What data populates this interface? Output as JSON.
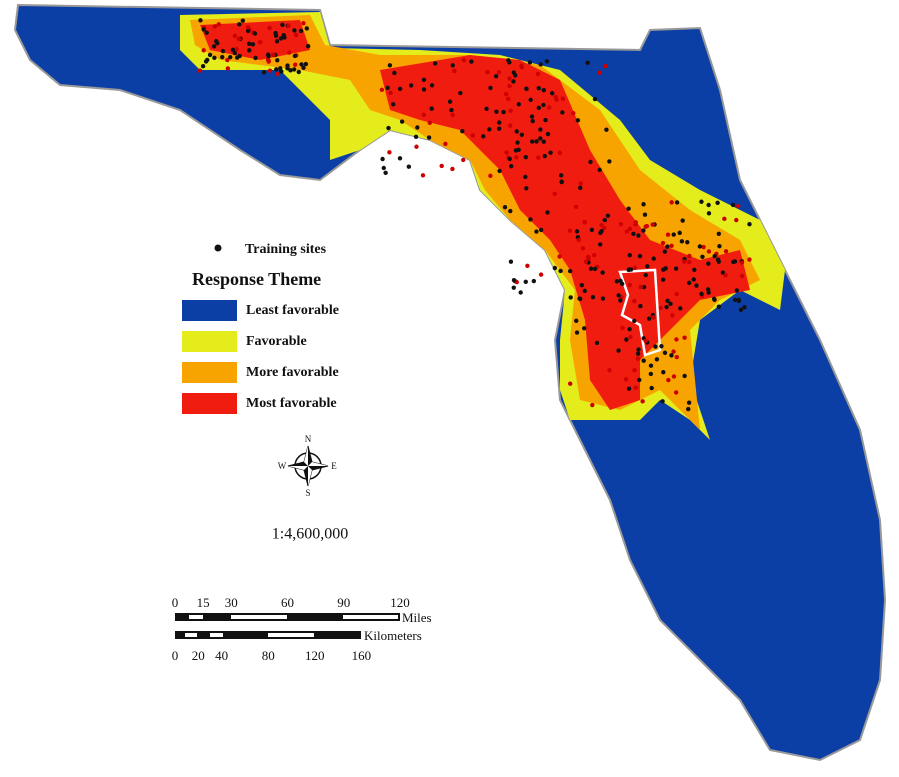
{
  "legend": {
    "point": "Training sites",
    "title": "Response Theme",
    "items": [
      {
        "label": "Least favorable",
        "color": "#0b3fa6"
      },
      {
        "label": "Favorable",
        "color": "#e4ec1c"
      },
      {
        "label": "More favorable",
        "color": "#f8a400"
      },
      {
        "label": "Most favorable",
        "color": "#f01c10"
      }
    ]
  },
  "compass": {
    "n": "N",
    "e": "E",
    "s": "S",
    "w": "W"
  },
  "scale_ratio": "1:4,600,000",
  "scale_bar": {
    "miles": {
      "unit": "Miles",
      "ticks": [
        0,
        15,
        30,
        60,
        90,
        120
      ]
    },
    "kilometers": {
      "unit": "Kilometers",
      "ticks": [
        0,
        20,
        40,
        80,
        120,
        160
      ]
    }
  }
}
